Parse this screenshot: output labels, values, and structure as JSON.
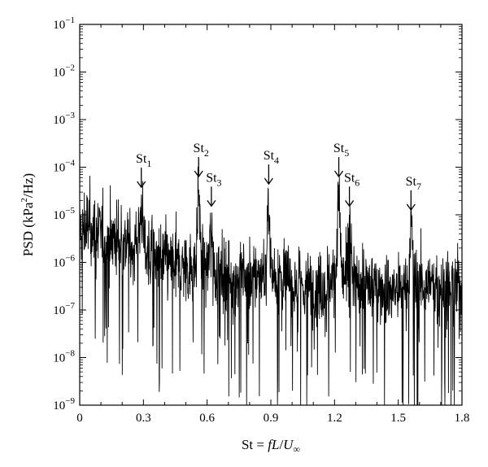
{
  "chart_data": {
    "type": "line",
    "title": "",
    "xlabel": {
      "prefix": "St = ",
      "f": "f",
      "L": "L",
      "slash": "/",
      "U": "U",
      "sub": "∞"
    },
    "ylabel": {
      "text": "PSD (kPa",
      "sup": "2",
      "rest": "/Hz)"
    },
    "xlim": [
      0,
      1.8
    ],
    "ylim": [
      1e-09,
      0.1
    ],
    "yscale": "log",
    "x_ticks": [
      "0",
      "0.3",
      "0.6",
      "0.9",
      "1.2",
      "1.5",
      "1.8"
    ],
    "y_ticks": [
      {
        "base": "10",
        "exp": "−1"
      },
      {
        "base": "10",
        "exp": "−2"
      },
      {
        "base": "10",
        "exp": "−3"
      },
      {
        "base": "10",
        "exp": "−4"
      },
      {
        "base": "10",
        "exp": "−5"
      },
      {
        "base": "10",
        "exp": "−6"
      },
      {
        "base": "10",
        "exp": "−7"
      },
      {
        "base": "10",
        "exp": "−8"
      },
      {
        "base": "10",
        "exp": "−9"
      }
    ],
    "peaks": [
      {
        "label": "St",
        "sub": "1",
        "x": 0.29,
        "y": 3e-05
      },
      {
        "label": "St",
        "sub": "2",
        "x": 0.56,
        "y": 5e-05
      },
      {
        "label": "St",
        "sub": "3",
        "x": 0.62,
        "y": 1.2e-05
      },
      {
        "label": "St",
        "sub": "4",
        "x": 0.89,
        "y": 3.5e-05
      },
      {
        "label": "St",
        "sub": "5",
        "x": 1.22,
        "y": 5e-05
      },
      {
        "label": "St",
        "sub": "6",
        "x": 1.27,
        "y": 1.2e-05
      },
      {
        "label": "St",
        "sub": "7",
        "x": 1.56,
        "y": 1e-05
      }
    ],
    "envelope": [
      {
        "x": 0.0,
        "center": 3e-06
      },
      {
        "x": 0.05,
        "center": 4e-06
      },
      {
        "x": 0.1,
        "center": 4e-06
      },
      {
        "x": 0.2,
        "center": 3e-06
      },
      {
        "x": 0.3,
        "center": 2e-06
      },
      {
        "x": 0.4,
        "center": 1e-06
      },
      {
        "x": 0.5,
        "center": 8e-07
      },
      {
        "x": 0.6,
        "center": 8e-07
      },
      {
        "x": 0.7,
        "center": 5e-07
      },
      {
        "x": 0.8,
        "center": 5e-07
      },
      {
        "x": 0.9,
        "center": 6e-07
      },
      {
        "x": 1.0,
        "center": 4e-07
      },
      {
        "x": 1.1,
        "center": 2.5e-07
      },
      {
        "x": 1.2,
        "center": 5e-07
      },
      {
        "x": 1.3,
        "center": 4e-07
      },
      {
        "x": 1.4,
        "center": 3e-07
      },
      {
        "x": 1.5,
        "center": 2.5e-07
      },
      {
        "x": 1.6,
        "center": 4e-07
      },
      {
        "x": 1.7,
        "center": 3e-07
      },
      {
        "x": 1.8,
        "center": 2.5e-07
      }
    ],
    "line_color": "#000000",
    "grid": false,
    "legend": "none"
  }
}
